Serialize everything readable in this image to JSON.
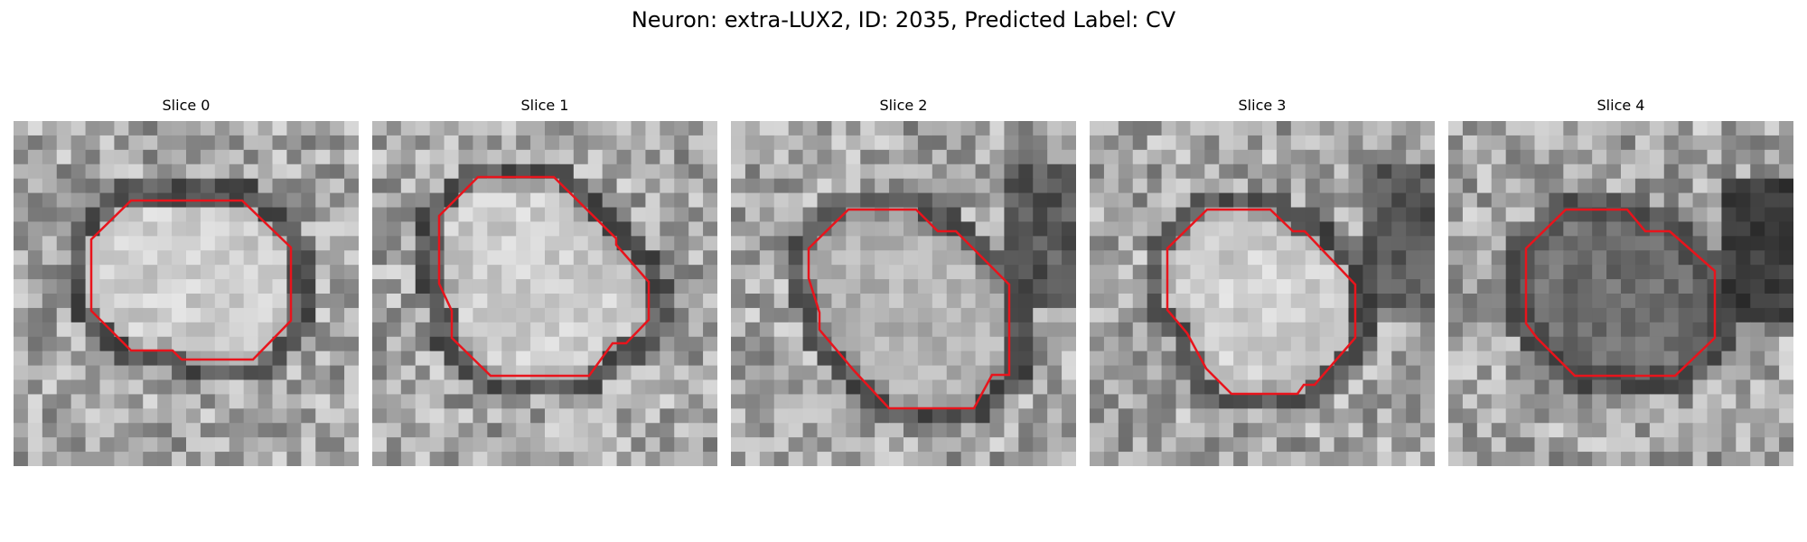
{
  "figure": {
    "title": "Neuron: extra-LUX2, ID: 2035, Predicted Label: CV"
  },
  "slices": [
    {
      "title": "Slice 0",
      "core": "bright",
      "contour_color": "#e8141c"
    },
    {
      "title": "Slice 1",
      "core": "bright",
      "contour_color": "#e8141c"
    },
    {
      "title": "Slice 2",
      "core": "mid",
      "contour_color": "#e8141c"
    },
    {
      "title": "Slice 3",
      "core": "bright",
      "contour_color": "#e8141c"
    },
    {
      "title": "Slice 4",
      "core": "dark",
      "contour_color": "#e8141c"
    }
  ],
  "colors": {
    "background": "#ffffff",
    "contour": "#e8141c",
    "colormap": "grayscale"
  }
}
